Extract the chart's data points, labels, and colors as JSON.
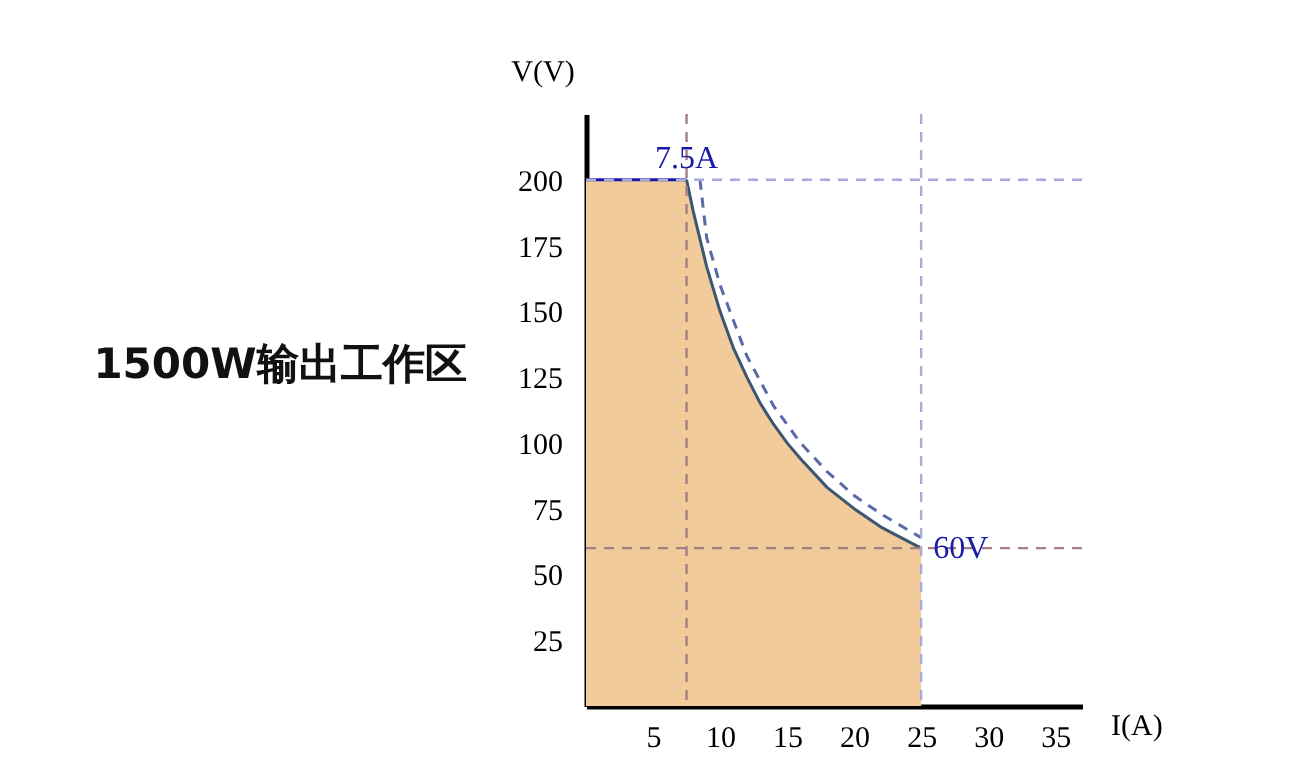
{
  "chart_data": {
    "type": "area",
    "title": "1500W输出工作区",
    "xlabel": "I(A)",
    "ylabel": "V(V)",
    "xlim": [
      0,
      37
    ],
    "xticks": [
      5,
      10,
      15,
      20,
      25,
      30,
      35
    ],
    "ylim": [
      0,
      225
    ],
    "yticks": [
      25,
      50,
      75,
      100,
      125,
      150,
      175,
      200
    ],
    "series": [
      {
        "color": "#f2cb9a",
        "x": [
          0,
          7.5,
          8,
          9,
          10,
          11,
          12,
          13,
          14,
          15,
          16,
          18,
          20,
          22,
          25
        ],
        "values": [
          200,
          200,
          188,
          167,
          150,
          136,
          125,
          115,
          107,
          100,
          94,
          83,
          75,
          68,
          60
        ]
      },
      {
        "type": "line",
        "color": "#3d5570",
        "x": [
          7.5,
          8,
          9,
          10,
          11,
          12,
          13,
          14,
          15,
          16,
          18,
          20,
          22,
          25
        ],
        "values": [
          200,
          188,
          167,
          150,
          136,
          125,
          115,
          107,
          100,
          94,
          83,
          75,
          68,
          60
        ]
      },
      {
        "type": "line",
        "color": "#1a1aa8",
        "x": [
          0,
          7.5
        ],
        "values": [
          200,
          200
        ]
      },
      {
        "type": "line",
        "color": "#5a6aa8",
        "line_style": "dashed",
        "x": [
          8.5,
          9,
          10,
          12,
          14,
          16,
          18,
          20,
          22,
          25
        ],
        "values": [
          200,
          178,
          160,
          133,
          114,
          100,
          89,
          80,
          73,
          64
        ]
      }
    ],
    "ref_lines": [
      {
        "axis": "x",
        "value": 7.5,
        "color": "#a08080",
        "line_style": "dashed"
      },
      {
        "axis": "y",
        "value": 60,
        "color": "#a08080",
        "line_style": "dashed"
      },
      {
        "axis": "x",
        "value": 25,
        "color": "#aaaadd",
        "line_style": "dashed"
      },
      {
        "axis": "y",
        "value": 200,
        "color": "#aaaadd",
        "line_style": "dashed"
      }
    ],
    "annotations": [
      {
        "text": "7.5A",
        "x": 7.5,
        "y": 200
      },
      {
        "text": "60V",
        "x": 25,
        "y": 60
      }
    ],
    "grid": false
  }
}
